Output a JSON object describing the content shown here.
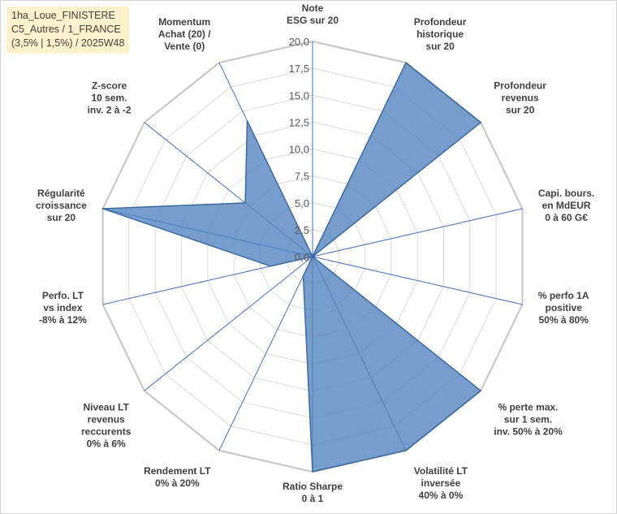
{
  "header": {
    "lines": [
      "1ha_Loue_FINISTERE",
      "C5_Autres / 1_FRANCE",
      "(3,5% | 1,5%) / 2025W48"
    ]
  },
  "colors": {
    "fill": "#4f81bd",
    "grid": "#d9d9d9",
    "spokes": "#4472c4",
    "background": "#ffffff",
    "title_bg": "#fff2cc"
  },
  "chart_data": {
    "type": "radar",
    "rmin": 0,
    "rmax": 20,
    "step": 2.5,
    "tick_labels": [
      "0,0",
      "2,5",
      "5,0",
      "7,5",
      "10,0",
      "12,5",
      "15,0",
      "17,5",
      "20,0"
    ],
    "axes": [
      {
        "label": [
          "Note",
          "ESG sur 20"
        ],
        "value": 0
      },
      {
        "label": [
          "Profondeur",
          "historique",
          "sur 20"
        ],
        "value": 20
      },
      {
        "label": [
          "Profondeur",
          "revenus",
          "sur 20"
        ],
        "value": 20
      },
      {
        "label": [
          "Capi. bours.",
          "en MdEUR",
          "0 à 60 G€"
        ],
        "value": 0
      },
      {
        "label": [
          "% perfo 1A",
          "positive",
          "50% à 80%"
        ],
        "value": 0
      },
      {
        "label": [
          "% perte max.",
          "sur 1 sem.",
          "inv. 50% à 20%"
        ],
        "value": 20
      },
      {
        "label": [
          "Volatilité LT",
          "inversée",
          "40% à 0%"
        ],
        "value": 20
      },
      {
        "label": [
          "Ratio Sharpe",
          "0 à 1"
        ],
        "value": 20
      },
      {
        "label": [
          "Rendement LT",
          "0% à 20%"
        ],
        "value": 2
      },
      {
        "label": [
          "Niveau LT",
          "revenus",
          "reccurents",
          "0% à 6%"
        ],
        "value": 0
      },
      {
        "label": [
          "Perfo. LT",
          "vs index",
          "-8% à 12%"
        ],
        "value": 4
      },
      {
        "label": [
          "Régularité",
          "croissance",
          "sur 20"
        ],
        "value": 20
      },
      {
        "label": [
          "Z-score",
          "10 sem.",
          "inv. 2 à -2"
        ],
        "value": 8
      },
      {
        "label": [
          "Momentum",
          "Achat (20) /",
          "Vente (0)"
        ],
        "value": 14
      }
    ]
  }
}
